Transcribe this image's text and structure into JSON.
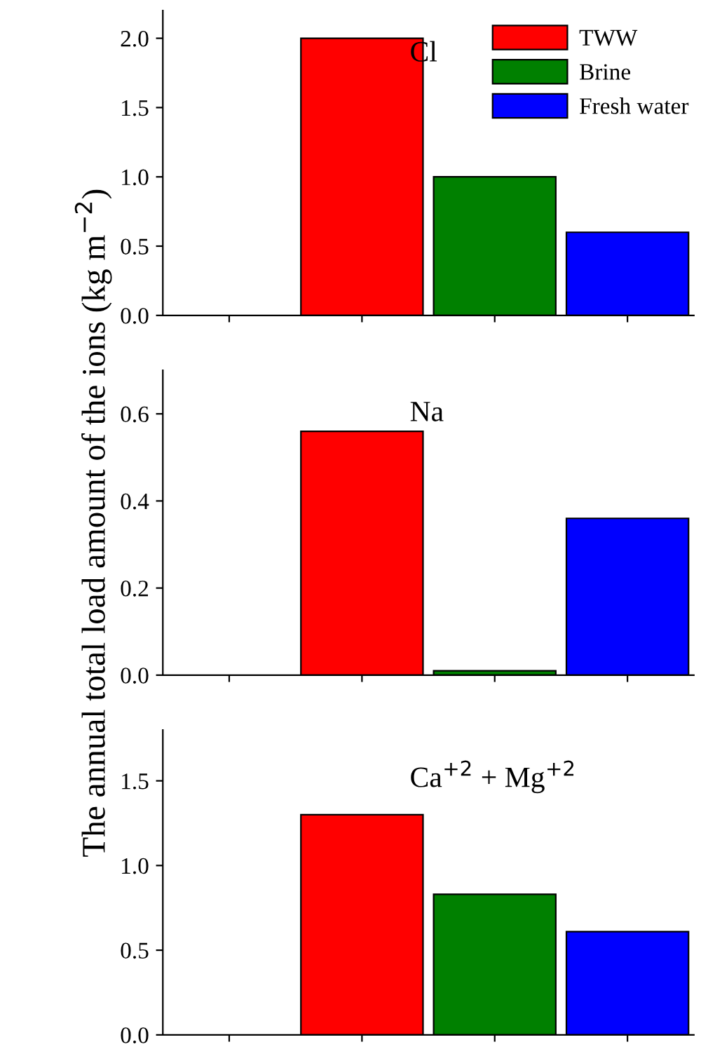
{
  "chart_data": [
    {
      "type": "bar",
      "categories": [
        null,
        null,
        null,
        null
      ],
      "series": [
        {
          "name": "TWW",
          "color": "#ff0000",
          "values": [
            null,
            2.0,
            null,
            null
          ]
        },
        {
          "name": "Brine",
          "color": "#008000",
          "values": [
            null,
            null,
            1.0,
            null
          ]
        },
        {
          "name": "Fresh water",
          "color": "#0000ff",
          "values": [
            null,
            null,
            null,
            0.6
          ]
        }
      ],
      "ylim": [
        0,
        2.2
      ],
      "yticks": [
        {
          "value": 0,
          "label": "0.0"
        },
        {
          "value": 0.5,
          "label": "0.5"
        },
        {
          "value": 1,
          "label": "1.0"
        },
        {
          "value": 1.5,
          "label": "1.5"
        },
        {
          "value": 2,
          "label": "2.0"
        }
      ],
      "annotations": [
        "Cl"
      ],
      "legend": "top right",
      "grid": false
    },
    {
      "type": "bar",
      "categories": [
        null,
        null,
        null,
        null
      ],
      "series": [
        {
          "color": "#ff0000",
          "values": [
            null,
            0.56,
            null,
            null
          ]
        },
        {
          "color": "#008000",
          "values": [
            null,
            null,
            0.01,
            null
          ]
        },
        {
          "color": "#0000ff",
          "values": [
            null,
            null,
            null,
            0.36
          ]
        }
      ],
      "ylim": [
        0,
        0.7
      ],
      "yticks": [
        {
          "value": 0,
          "label": "0.0"
        },
        {
          "value": 0.2,
          "label": "0.2"
        },
        {
          "value": 0.4,
          "label": "0.4"
        },
        {
          "value": 0.6,
          "label": "0.6"
        }
      ],
      "ylabel": "The annual total load amount of the ions (kg m$^{−2}$)",
      "annotations": [
        "Na"
      ],
      "grid": false
    },
    {
      "type": "bar",
      "categories": [
        null,
        null,
        null,
        null
      ],
      "series": [
        {
          "color": "#ff0000",
          "values": [
            null,
            1.3,
            null,
            null
          ]
        },
        {
          "color": "#008000",
          "values": [
            null,
            null,
            0.83,
            null
          ]
        },
        {
          "color": "#0000ff",
          "values": [
            null,
            null,
            null,
            0.61
          ]
        }
      ],
      "ylim": [
        0,
        1.8
      ],
      "yticks": [
        {
          "value": 0,
          "label": "0.0"
        },
        {
          "value": 0.5,
          "label": "0.5"
        },
        {
          "value": 1,
          "label": "1.0"
        },
        {
          "value": 1.5,
          "label": "1.5"
        }
      ],
      "annotations": [
        "Ca$^{+2}$ + Mg$^{+2}$"
      ],
      "grid": false
    }
  ]
}
